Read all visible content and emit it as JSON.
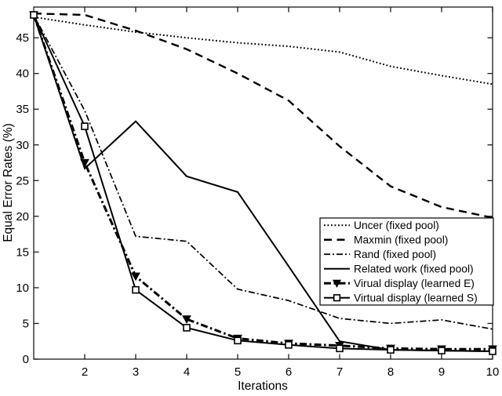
{
  "chart_data": {
    "type": "line",
    "title": "",
    "xlabel": "Iterations",
    "ylabel": "Equal Error Rates (%)",
    "x": [
      1,
      2,
      3,
      4,
      5,
      6,
      7,
      8,
      9,
      10
    ],
    "xlim": [
      1,
      10
    ],
    "ylim": [
      0,
      49.3
    ],
    "xticks": [
      2,
      3,
      4,
      5,
      6,
      7,
      8,
      9,
      10
    ],
    "yticks": [
      0,
      5,
      10,
      15,
      20,
      25,
      30,
      35,
      40,
      45
    ],
    "grid": false,
    "background": "#ffffff",
    "line_color": "#000000",
    "axis_color": "#1a1a1a",
    "legend": {
      "position": "right-center",
      "border": true
    },
    "series": [
      {
        "name": "Uncer (fixed pool)",
        "style": "dotted",
        "marker": "none",
        "width": 2.0,
        "values": [
          47.9,
          46.8,
          45.8,
          45.0,
          44.3,
          43.8,
          43.0,
          41.0,
          39.7,
          38.5
        ]
      },
      {
        "name": "Maxmin (fixed pool)",
        "style": "dashed",
        "marker": "none",
        "width": 2.4,
        "values": [
          48.4,
          48.2,
          46.0,
          43.4,
          40.0,
          36.2,
          29.8,
          24.2,
          21.3,
          19.8
        ]
      },
      {
        "name": "Rand (fixed pool)",
        "style": "dashdot",
        "marker": "none",
        "width": 1.7,
        "values": [
          48.2,
          34.8,
          17.2,
          16.5,
          9.8,
          8.2,
          5.7,
          5.0,
          5.5,
          4.2
        ]
      },
      {
        "name": "Related work (fixed pool)",
        "style": "solid",
        "marker": "none",
        "width": 2.0,
        "values": [
          48.2,
          26.7,
          33.3,
          25.6,
          23.4,
          13.0,
          2.5,
          1.3,
          1.2,
          1.1
        ]
      },
      {
        "name": "Virual display (learned E)",
        "style": "dashdot-bold",
        "marker": "triangle-down",
        "width": 3.0,
        "values": [
          48.2,
          27.5,
          11.6,
          5.6,
          2.9,
          2.2,
          1.9,
          1.5,
          1.4,
          1.4
        ]
      },
      {
        "name": "Virtual display (learned S)",
        "style": "solid",
        "marker": "square-open",
        "width": 2.0,
        "values": [
          48.2,
          32.6,
          9.7,
          4.4,
          2.6,
          2.0,
          1.5,
          1.3,
          1.2,
          1.1
        ]
      }
    ]
  }
}
